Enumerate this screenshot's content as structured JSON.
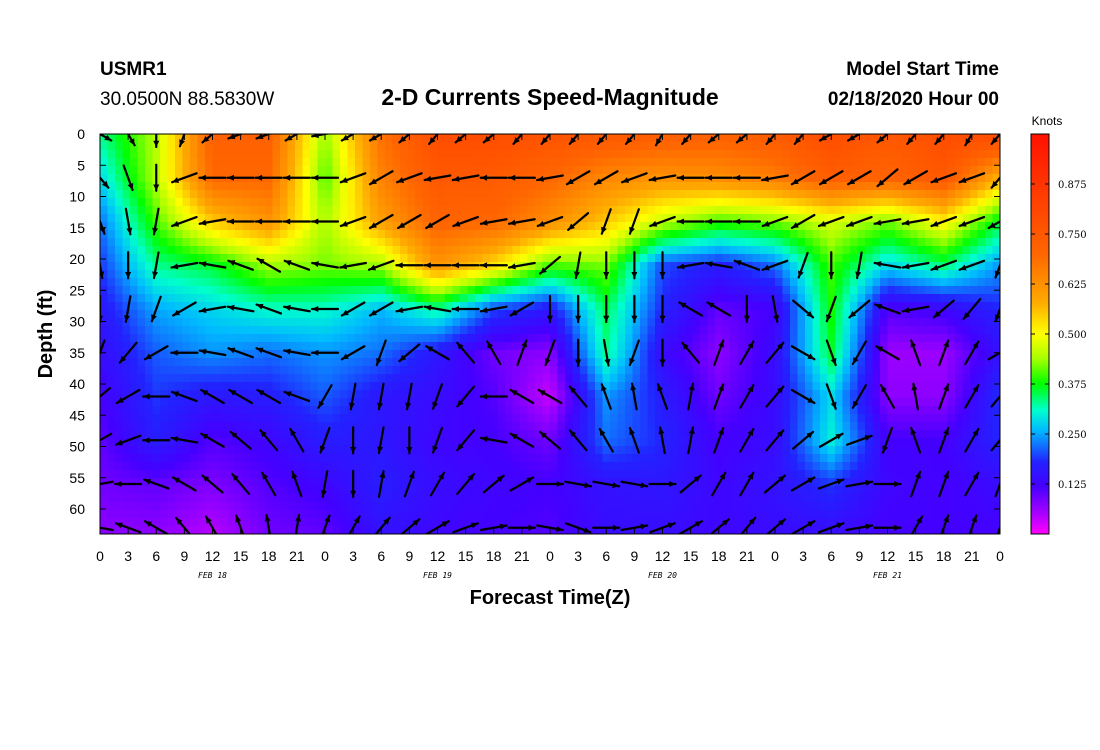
{
  "header": {
    "station": "USMR1",
    "location": "30.0500N 88.5830W",
    "title": "2-D Currents Speed-Magnitude",
    "model_start_label": "Model Start Time",
    "model_start_value": "02/18/2020 Hour 00"
  },
  "chart_data": {
    "type": "heatmap",
    "title": "2-D Currents Speed-Magnitude",
    "xlabel": "Forecast Time(Z)",
    "ylabel": "Depth (ft)",
    "x_ticks": [
      "0",
      "3",
      "6",
      "9",
      "12",
      "15",
      "18",
      "21",
      "0",
      "3",
      "6",
      "9",
      "12",
      "15",
      "18",
      "21",
      "0",
      "3",
      "6",
      "9",
      "12",
      "15",
      "18",
      "21",
      "0",
      "3",
      "6",
      "9",
      "12",
      "15",
      "18",
      "21",
      "0"
    ],
    "x_range_hours": [
      0,
      96
    ],
    "date_labels": [
      {
        "label": "FEB 18",
        "hour": 12
      },
      {
        "label": "FEB 19",
        "hour": 36
      },
      {
        "label": "FEB 20",
        "hour": 60
      },
      {
        "label": "FEB 21",
        "hour": 84
      }
    ],
    "y_ticks": [
      "0",
      "5",
      "10",
      "15",
      "20",
      "25",
      "30",
      "35",
      "40",
      "45",
      "50",
      "55",
      "60"
    ],
    "y_range_ft": [
      0,
      64
    ],
    "y_inverted": true,
    "colorbar": {
      "unit_label": "Knots",
      "range": [
        0,
        1.0
      ],
      "ticks": [
        "0.125",
        "0.250",
        "0.375",
        "0.500",
        "0.625",
        "0.750",
        "0.875"
      ],
      "colors": [
        "#ff00ff",
        "#8800ff",
        "#2222ff",
        "#00bbff",
        "#00ffcc",
        "#00ff00",
        "#aaff00",
        "#ffff00",
        "#ffaa00",
        "#ff6600",
        "#ff1100"
      ]
    },
    "speed_field_knots": {
      "depths_ft": [
        0,
        7,
        14,
        21,
        28,
        35,
        42,
        49,
        56,
        64
      ],
      "hours": [
        0,
        6,
        12,
        18,
        24,
        30,
        36,
        42,
        48,
        54,
        60,
        66,
        72,
        78,
        84,
        90,
        96
      ],
      "values": [
        [
          0.33,
          0.45,
          0.72,
          0.72,
          0.43,
          0.68,
          0.79,
          0.79,
          0.77,
          0.75,
          0.73,
          0.72,
          0.74,
          0.79,
          0.75,
          0.79,
          0.8
        ],
        [
          0.28,
          0.45,
          0.7,
          0.7,
          0.4,
          0.65,
          0.75,
          0.74,
          0.7,
          0.64,
          0.62,
          0.63,
          0.66,
          0.73,
          0.71,
          0.75,
          0.57
        ],
        [
          0.22,
          0.4,
          0.55,
          0.62,
          0.44,
          0.6,
          0.71,
          0.7,
          0.63,
          0.55,
          0.46,
          0.4,
          0.42,
          0.47,
          0.42,
          0.51,
          0.36
        ],
        [
          0.19,
          0.33,
          0.36,
          0.44,
          0.42,
          0.44,
          0.62,
          0.53,
          0.4,
          0.42,
          0.2,
          0.17,
          0.22,
          0.4,
          0.28,
          0.34,
          0.24
        ],
        [
          0.16,
          0.25,
          0.28,
          0.31,
          0.31,
          0.26,
          0.33,
          0.2,
          0.16,
          0.35,
          0.18,
          0.1,
          0.12,
          0.38,
          0.11,
          0.13,
          0.18
        ],
        [
          0.14,
          0.21,
          0.24,
          0.22,
          0.24,
          0.22,
          0.16,
          0.09,
          0.07,
          0.33,
          0.14,
          0.07,
          0.14,
          0.36,
          0.06,
          0.06,
          0.15
        ],
        [
          0.12,
          0.19,
          0.16,
          0.17,
          0.21,
          0.16,
          0.14,
          0.11,
          0.03,
          0.24,
          0.17,
          0.09,
          0.14,
          0.28,
          0.07,
          0.07,
          0.19
        ],
        [
          0.1,
          0.17,
          0.11,
          0.13,
          0.17,
          0.16,
          0.13,
          0.12,
          0.09,
          0.22,
          0.18,
          0.12,
          0.14,
          0.3,
          0.12,
          0.12,
          0.18
        ],
        [
          0.09,
          0.1,
          0.08,
          0.11,
          0.13,
          0.17,
          0.14,
          0.13,
          0.12,
          0.15,
          0.16,
          0.13,
          0.15,
          0.19,
          0.13,
          0.12,
          0.14
        ],
        [
          0.07,
          0.07,
          0.04,
          0.09,
          0.1,
          0.15,
          0.13,
          0.12,
          0.11,
          0.14,
          0.14,
          0.13,
          0.14,
          0.14,
          0.12,
          0.12,
          0.12
        ]
      ]
    },
    "vector_field": {
      "depths_ft": [
        0,
        7,
        14,
        21,
        28,
        35,
        42,
        49,
        56,
        63
      ],
      "hours": [
        0,
        3,
        6,
        9,
        12,
        15,
        18,
        21,
        24,
        27,
        30,
        33,
        36,
        39,
        42,
        45,
        48,
        51,
        54,
        57,
        60,
        63,
        66,
        69,
        72,
        75,
        78,
        81,
        84,
        87,
        90,
        93,
        96
      ],
      "direction_deg_from_north": [
        [
          120,
          150,
          180,
          200,
          230,
          250,
          250,
          240,
          260,
          240,
          240,
          230,
          220,
          230,
          230,
          220,
          220,
          220,
          220,
          220,
          210,
          220,
          230,
          230,
          220,
          220,
          240,
          240,
          230,
          220,
          220,
          210,
          220
        ],
        [
          140,
          160,
          180,
          250,
          270,
          270,
          270,
          270,
          270,
          250,
          240,
          250,
          260,
          260,
          270,
          270,
          260,
          240,
          240,
          250,
          260,
          270,
          270,
          270,
          260,
          240,
          240,
          240,
          230,
          240,
          250,
          250,
          220
        ],
        [
          160,
          170,
          190,
          250,
          260,
          270,
          270,
          270,
          270,
          250,
          240,
          240,
          240,
          250,
          260,
          260,
          250,
          230,
          200,
          200,
          250,
          270,
          270,
          270,
          250,
          240,
          250,
          250,
          260,
          260,
          250,
          250,
          240
        ],
        [
          170,
          180,
          190,
          260,
          280,
          290,
          300,
          290,
          280,
          260,
          250,
          270,
          270,
          270,
          270,
          260,
          230,
          190,
          180,
          180,
          180,
          260,
          280,
          290,
          250,
          200,
          180,
          190,
          280,
          260,
          250,
          250,
          200
        ],
        [
          180,
          190,
          200,
          240,
          260,
          280,
          290,
          280,
          270,
          240,
          240,
          260,
          280,
          270,
          260,
          240,
          180,
          180,
          180,
          180,
          180,
          300,
          300,
          180,
          170,
          130,
          200,
          230,
          290,
          260,
          230,
          220,
          200
        ],
        [
          200,
          220,
          240,
          270,
          280,
          290,
          290,
          280,
          270,
          240,
          200,
          230,
          300,
          320,
          330,
          20,
          200,
          180,
          170,
          200,
          180,
          320,
          20,
          30,
          40,
          120,
          160,
          210,
          300,
          340,
          20,
          30,
          60
        ],
        [
          230,
          240,
          270,
          290,
          300,
          300,
          300,
          290,
          210,
          190,
          190,
          190,
          200,
          220,
          270,
          300,
          300,
          320,
          340,
          350,
          340,
          10,
          20,
          30,
          40,
          120,
          160,
          210,
          330,
          350,
          20,
          30,
          40
        ],
        [
          240,
          250,
          270,
          280,
          300,
          310,
          320,
          330,
          200,
          180,
          190,
          180,
          200,
          220,
          280,
          300,
          310,
          320,
          330,
          340,
          350,
          10,
          20,
          30,
          40,
          50,
          60,
          70,
          200,
          340,
          20,
          30,
          40
        ],
        [
          260,
          270,
          290,
          300,
          310,
          320,
          330,
          340,
          190,
          180,
          10,
          20,
          30,
          40,
          50,
          60,
          90,
          100,
          100,
          100,
          90,
          50,
          30,
          30,
          50,
          60,
          70,
          80,
          90,
          20,
          20,
          30,
          20
        ],
        [
          280,
          290,
          300,
          320,
          330,
          340,
          350,
          10,
          20,
          30,
          40,
          50,
          60,
          70,
          80,
          90,
          100,
          110,
          90,
          80,
          70,
          60,
          50,
          40,
          50,
          60,
          70,
          80,
          90,
          30,
          20,
          20,
          20
        ]
      ]
    }
  }
}
